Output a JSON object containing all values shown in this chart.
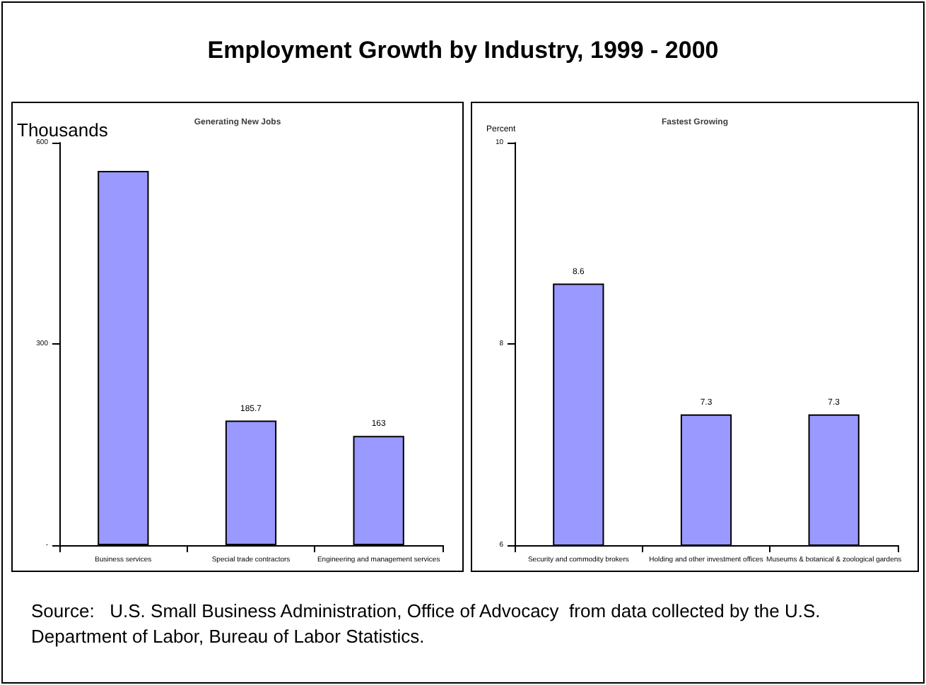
{
  "chart_data": [
    {
      "type": "bar",
      "title": "Employment Growth by Industry, 1999 - 2000",
      "subtitle": "Generating New Jobs",
      "ylabel": "Thousands",
      "categories": [
        "Business services",
        "Special trade contractors",
        "Engineering and management services"
      ],
      "values": [
        558,
        185.7,
        163
      ],
      "value_labels": [
        null,
        "185.7",
        "163"
      ],
      "color": "#9999ff",
      "ylim": [
        0,
        600
      ],
      "yticks": [
        {
          "value": 0,
          "label": "-"
        },
        300,
        600
      ],
      "annotations": [
        "Source:   U.S. Small Business Administration, Office of Advocacy  from data collected by the U.S.  Department of Labor, Bureau of Labor Statistics."
      ]
    },
    {
      "type": "bar",
      "title": "Fastest Growing",
      "ylabel": "Percent",
      "categories": [
        "Security and commodity brokers",
        "Holding and other investment offices",
        "Museums & botanical & zoological gardens"
      ],
      "values": [
        8.6,
        7.3,
        7.3
      ],
      "data_labels": true,
      "color": "#9999ff",
      "ylim": [
        6,
        10
      ],
      "yticks": [
        6,
        8,
        10
      ]
    }
  ]
}
